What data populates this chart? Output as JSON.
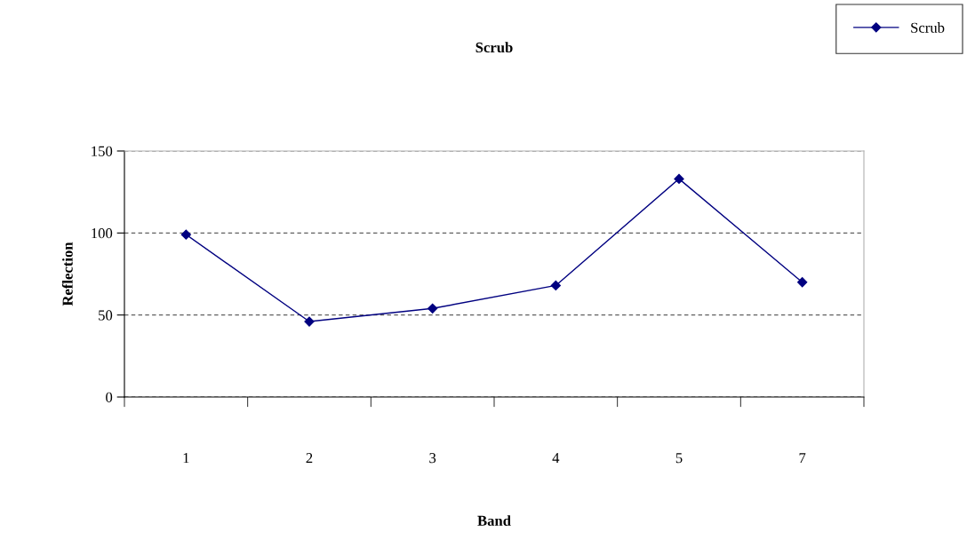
{
  "chart_data": {
    "type": "line",
    "title": "Scrub",
    "xlabel": "Band",
    "ylabel": "Reflection",
    "categories": [
      "1",
      "2",
      "3",
      "4",
      "5",
      "7"
    ],
    "series": [
      {
        "name": "Scrub",
        "color": "#000080",
        "values": [
          99,
          46,
          54,
          68,
          133,
          70
        ]
      }
    ],
    "ylim": [
      0,
      150
    ],
    "yticks": [
      0,
      50,
      100,
      150
    ],
    "grid": "y",
    "legend": "top right",
    "marker": "diamond",
    "line_style": "solid"
  }
}
